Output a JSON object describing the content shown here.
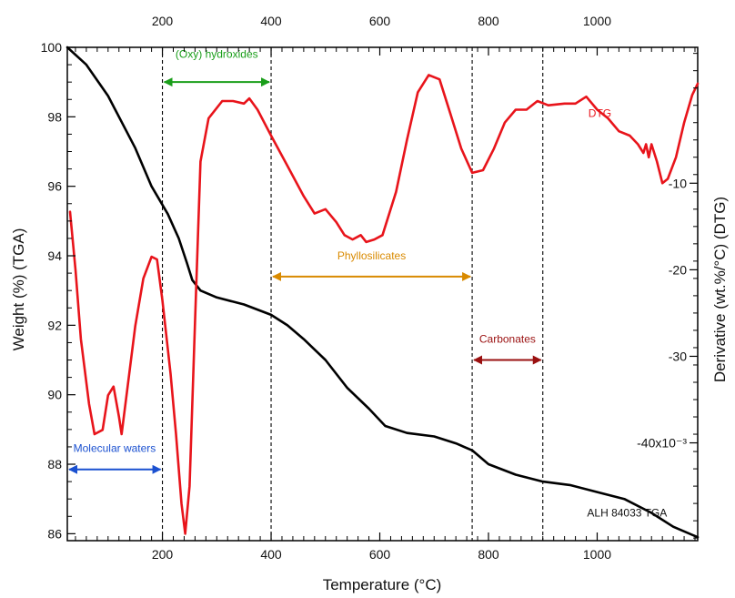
{
  "chart_data": {
    "type": "line",
    "title": "",
    "xlabel": "Temperature (°C)",
    "ylabel_left": "Weight (%) (TGA)",
    "ylabel_right": "Derivative (wt.%/°C) (DTG)",
    "xlim": [
      25,
      1185
    ],
    "ylim_left": [
      85.8,
      100
    ],
    "ylim_right": [
      -0.0513,
      0.0057
    ],
    "x_ticks": [
      200,
      400,
      600,
      800,
      1000
    ],
    "x_tick_labels": [
      "200",
      "400",
      "600",
      "800",
      "1000"
    ],
    "y_left_ticks": [
      86,
      88,
      90,
      92,
      94,
      96,
      98,
      100
    ],
    "y_left_tick_labels": [
      "86",
      "88",
      "90",
      "92",
      "94",
      "96",
      "98",
      "100"
    ],
    "y_right_ticks": [
      -0.01,
      -0.02,
      -0.03,
      -0.04
    ],
    "y_right_tick_labels": [
      "-10",
      "-20",
      "-30",
      "-40x10⁻³"
    ],
    "grid": false,
    "series": [
      {
        "name": "ALH 84033 TGA",
        "axis": "left",
        "color": "#000000",
        "points": [
          [
            25,
            100
          ],
          [
            60,
            99.5
          ],
          [
            100,
            98.6
          ],
          [
            150,
            97.1
          ],
          [
            180,
            96.0
          ],
          [
            210,
            95.2
          ],
          [
            230,
            94.5
          ],
          [
            245,
            93.8
          ],
          [
            255,
            93.3
          ],
          [
            270,
            93.0
          ],
          [
            300,
            92.8
          ],
          [
            350,
            92.6
          ],
          [
            400,
            92.3
          ],
          [
            430,
            92.0
          ],
          [
            460,
            91.6
          ],
          [
            500,
            91.0
          ],
          [
            540,
            90.2
          ],
          [
            580,
            89.6
          ],
          [
            610,
            89.1
          ],
          [
            650,
            88.9
          ],
          [
            700,
            88.8
          ],
          [
            740,
            88.6
          ],
          [
            770,
            88.4
          ],
          [
            800,
            88.0
          ],
          [
            850,
            87.7
          ],
          [
            900,
            87.5
          ],
          [
            950,
            87.4
          ],
          [
            1000,
            87.2
          ],
          [
            1050,
            87.0
          ],
          [
            1100,
            86.6
          ],
          [
            1140,
            86.2
          ],
          [
            1185,
            85.9
          ]
        ]
      },
      {
        "name": "DTG",
        "axis": "right",
        "color": "#e8141b",
        "points": [
          [
            30,
            -0.0133
          ],
          [
            40,
            -0.02
          ],
          [
            50,
            -0.028
          ],
          [
            65,
            -0.0355
          ],
          [
            75,
            -0.039
          ],
          [
            90,
            -0.0385
          ],
          [
            100,
            -0.0345
          ],
          [
            110,
            -0.0335
          ],
          [
            120,
            -0.037
          ],
          [
            125,
            -0.039
          ],
          [
            135,
            -0.034
          ],
          [
            150,
            -0.0265
          ],
          [
            165,
            -0.021
          ],
          [
            180,
            -0.0185
          ],
          [
            190,
            -0.0188
          ],
          [
            200,
            -0.0235
          ],
          [
            215,
            -0.032
          ],
          [
            225,
            -0.039
          ],
          [
            235,
            -0.047
          ],
          [
            242,
            -0.0505
          ],
          [
            250,
            -0.045
          ],
          [
            260,
            -0.026
          ],
          [
            270,
            -0.0075
          ],
          [
            285,
            -0.0025
          ],
          [
            310,
            -0.0005
          ],
          [
            330,
            -0.0005
          ],
          [
            350,
            -0.0008
          ],
          [
            360,
            -0.0002
          ],
          [
            375,
            -0.0015
          ],
          [
            400,
            -0.0045
          ],
          [
            430,
            -0.008
          ],
          [
            460,
            -0.0115
          ],
          [
            480,
            -0.0135
          ],
          [
            500,
            -0.013
          ],
          [
            520,
            -0.0145
          ],
          [
            535,
            -0.016
          ],
          [
            550,
            -0.0165
          ],
          [
            565,
            -0.016
          ],
          [
            575,
            -0.0168
          ],
          [
            590,
            -0.0165
          ],
          [
            605,
            -0.016
          ],
          [
            630,
            -0.011
          ],
          [
            650,
            -0.005
          ],
          [
            670,
            0.0005
          ],
          [
            690,
            0.0025
          ],
          [
            710,
            0.002
          ],
          [
            730,
            -0.002
          ],
          [
            750,
            -0.006
          ],
          [
            770,
            -0.0088
          ],
          [
            790,
            -0.0085
          ],
          [
            810,
            -0.006
          ],
          [
            830,
            -0.003
          ],
          [
            850,
            -0.0015
          ],
          [
            870,
            -0.0015
          ],
          [
            890,
            -0.0005
          ],
          [
            910,
            -0.001
          ],
          [
            940,
            -0.0008
          ],
          [
            960,
            -0.0008
          ],
          [
            980,
            0.0
          ],
          [
            1000,
            -0.0015
          ],
          [
            1020,
            -0.0025
          ],
          [
            1040,
            -0.004
          ],
          [
            1060,
            -0.0045
          ],
          [
            1075,
            -0.0055
          ],
          [
            1085,
            -0.0065
          ],
          [
            1090,
            -0.0055
          ],
          [
            1095,
            -0.007
          ],
          [
            1100,
            -0.0055
          ],
          [
            1110,
            -0.0075
          ],
          [
            1120,
            -0.01
          ],
          [
            1130,
            -0.0095
          ],
          [
            1145,
            -0.007
          ],
          [
            1160,
            -0.003
          ],
          [
            1175,
            0.0002
          ],
          [
            1185,
            0.0015
          ]
        ]
      }
    ],
    "vlines": [
      200,
      400,
      770,
      900
    ],
    "annotations": [
      {
        "text": "(Oxy) hydroxides",
        "color": "#1a9e1a",
        "x_from": 200,
        "x_to": 400,
        "y_left": 99.0,
        "label_x": 300,
        "label_y_left": 99.7
      },
      {
        "text": "Phyllosilicates",
        "color": "#d98a00",
        "x_from": 400,
        "x_to": 770,
        "y_left": 93.4,
        "label_x": 585,
        "label_y_left": 93.9
      },
      {
        "text": "Carbonates",
        "color": "#9a1010",
        "x_from": 770,
        "x_to": 900,
        "y_left": 91.0,
        "label_x": 835,
        "label_y_left": 91.5
      },
      {
        "text": "Molecular waters",
        "color": "#1a50d0",
        "x_from": 25,
        "x_to": 200,
        "y_left": 87.85,
        "label_x": 112,
        "label_y_left": 88.35
      },
      {
        "text": "DTG",
        "color": "#e8141b",
        "x_from": null,
        "x_to": null,
        "y_left": null,
        "label_x": 1005,
        "label_y_left": 98.0
      },
      {
        "text": "ALH 84033 TGA",
        "color": "#111111",
        "x_from": null,
        "x_to": null,
        "y_left": null,
        "label_x": 1055,
        "label_y_left": 86.5
      }
    ]
  }
}
